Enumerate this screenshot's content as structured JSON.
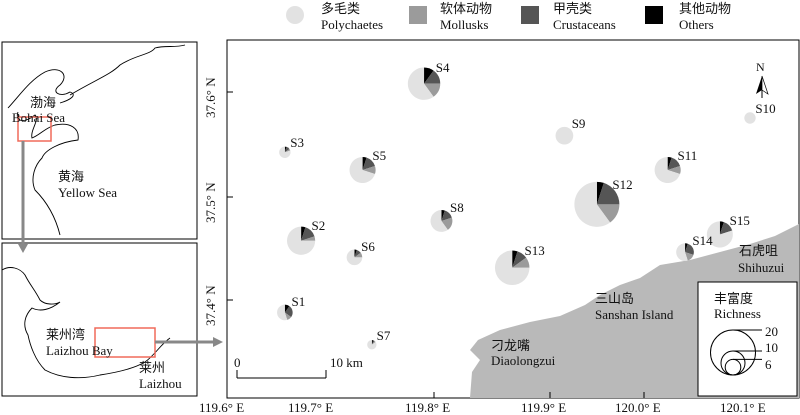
{
  "legend": {
    "categories": [
      {
        "zh": "多毛类",
        "en": "Polychaetes",
        "color": "#e2e2e2"
      },
      {
        "zh": "软体动物",
        "en": "Mollusks",
        "color": "#9b9b9b"
      },
      {
        "zh": "甲壳类",
        "en": "Crustaceans",
        "color": "#555555"
      },
      {
        "zh": "其他动物",
        "en": "Others",
        "color": "#000000"
      }
    ]
  },
  "inset_top": {
    "bohai_zh": "渤海",
    "bohai_en": "Bohai Sea",
    "yellow_zh": "黄海",
    "yellow_en": "Yellow Sea"
  },
  "inset_bottom": {
    "bay_zh": "莱州湾",
    "bay_en": "Laizhou Bay",
    "city_zh": "莱州",
    "city_en": "Laizhou"
  },
  "axes": {
    "x_ticks": [
      "119.6° E",
      "119.7° E",
      "119.8° E",
      "119.9° E",
      "120.0° E",
      "120.1° E"
    ],
    "y_ticks": [
      "37.6° N",
      "37.5° N",
      "37.4° N"
    ]
  },
  "places": {
    "sanshan_zh": "三山岛",
    "sanshan_en": "Sanshan Island",
    "diaolong_zh": "刁龙嘴",
    "diaolong_en": "Diaolongzui",
    "shihu_zh": "石虎咀",
    "shihu_en": "Shihuzui"
  },
  "scale_bar": {
    "zero": "0",
    "end": "10 km"
  },
  "north": "N",
  "richness_legend": {
    "zh": "丰富度",
    "en": "Richness",
    "values": [
      20,
      10,
      6
    ]
  },
  "stations": [
    {
      "id": "S1",
      "lon": 119.649,
      "lat": 37.388,
      "richness": 6,
      "fractions": [
        0.55,
        0.1,
        0.25,
        0.1
      ]
    },
    {
      "id": "S2",
      "lon": 119.663,
      "lat": 37.457,
      "richness": 12,
      "fractions": [
        0.75,
        0.05,
        0.15,
        0.05
      ]
    },
    {
      "id": "S3",
      "lon": 119.649,
      "lat": 37.542,
      "richness": 4,
      "fractions": [
        0.8,
        0.05,
        0.1,
        0.05
      ]
    },
    {
      "id": "S4",
      "lon": 119.769,
      "lat": 37.608,
      "richness": 14,
      "fractions": [
        0.6,
        0.15,
        0.15,
        0.1
      ]
    },
    {
      "id": "S5",
      "lon": 119.716,
      "lat": 37.525,
      "richness": 11,
      "fractions": [
        0.7,
        0.1,
        0.15,
        0.05
      ]
    },
    {
      "id": "S6",
      "lon": 119.709,
      "lat": 37.441,
      "richness": 6,
      "fractions": [
        0.75,
        0.1,
        0.1,
        0.05
      ]
    },
    {
      "id": "S7",
      "lon": 119.724,
      "lat": 37.357,
      "richness": 3,
      "fractions": [
        0.85,
        0.05,
        0.05,
        0.05
      ]
    },
    {
      "id": "S8",
      "lon": 119.784,
      "lat": 37.476,
      "richness": 9,
      "fractions": [
        0.6,
        0.2,
        0.15,
        0.05
      ]
    },
    {
      "id": "S9",
      "lon": 119.89,
      "lat": 37.558,
      "richness": 7,
      "fractions": [
        1,
        0,
        0,
        0
      ]
    },
    {
      "id": "S10",
      "lon": 120.05,
      "lat": 37.575,
      "richness": 4,
      "fractions": [
        1,
        0,
        0,
        0
      ]
    },
    {
      "id": "S11",
      "lon": 119.979,
      "lat": 37.525,
      "richness": 11,
      "fractions": [
        0.7,
        0.1,
        0.15,
        0.05
      ]
    },
    {
      "id": "S12",
      "lon": 119.918,
      "lat": 37.492,
      "richness": 20,
      "fractions": [
        0.6,
        0.15,
        0.2,
        0.05
      ]
    },
    {
      "id": "S13",
      "lon": 119.845,
      "lat": 37.431,
      "richness": 15,
      "fractions": [
        0.75,
        0.1,
        0.1,
        0.05
      ]
    },
    {
      "id": "S14",
      "lon": 119.994,
      "lat": 37.446,
      "richness": 7,
      "fractions": [
        0.55,
        0.15,
        0.25,
        0.05
      ]
    },
    {
      "id": "S15",
      "lon": 120.024,
      "lat": 37.463,
      "richness": 11,
      "fractions": [
        0.8,
        0.0,
        0.15,
        0.05
      ]
    }
  ]
}
